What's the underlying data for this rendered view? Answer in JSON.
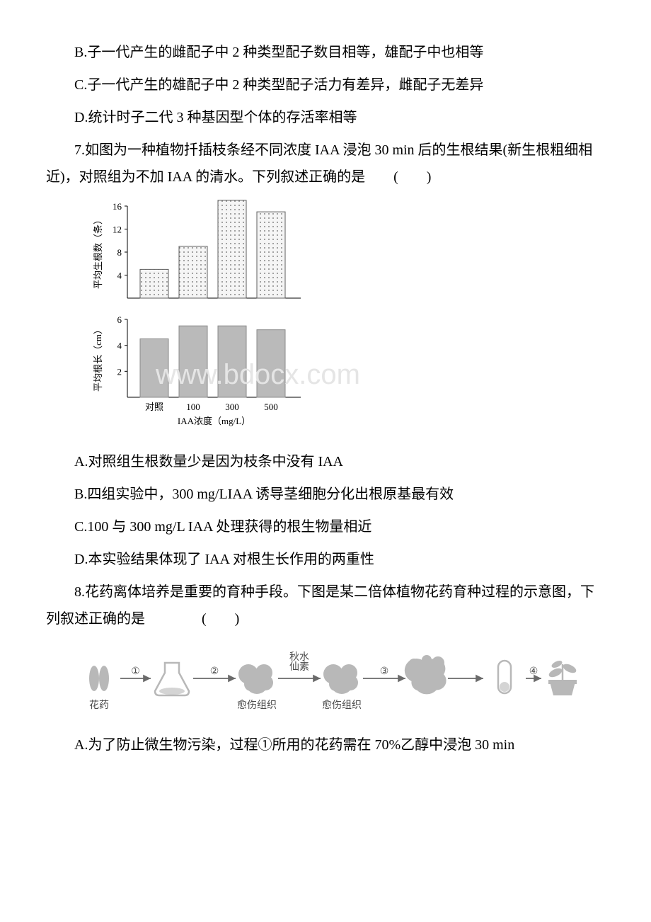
{
  "q6": {
    "optB": "B.子一代产生的雌配子中 2 种类型配子数目相等，雄配子中也相等",
    "optC": "C.子一代产生的雄配子中 2 种类型配子活力有差异，雌配子无差异",
    "optD": "D.统计时子二代 3 种基因型个体的存活率相等"
  },
  "q7": {
    "stem": "7.如图为一种植物扦插枝条经不同浓度 IAA 浸泡 30 min 后的生根结果(新生根粗细相近)，对照组为不加 IAA 的清水。下列叙述正确的是  (  )",
    "optA": "A.对照组生根数量少是因为枝条中没有 IAA",
    "optB": "B.四组实验中，300 mg/LIAA 诱导茎细胞分化出根原基最有效",
    "optC": "C.100 与 300 mg/L IAA 处理获得的根生物量相近",
    "optD": "D.本实验结果体现了 IAA 对根生长作用的两重性",
    "chart_top": {
      "ylabel": "平均生根数（条）",
      "ymax": 16,
      "yticks": [
        4,
        8,
        12,
        16
      ],
      "values": [
        5,
        9,
        17,
        15
      ],
      "categories": [
        "对照",
        "100",
        "300",
        "500"
      ],
      "bar_fill": "#f5f5f5",
      "bar_stroke": "#5c5c5c",
      "dot_pattern": true,
      "axis_color": "#000"
    },
    "chart_bottom": {
      "ylabel": "平均根长（cm）",
      "ymax": 6,
      "yticks": [
        2,
        4,
        6
      ],
      "values": [
        4.5,
        5.5,
        5.5,
        5.2
      ],
      "categories": [
        "对照",
        "100",
        "300",
        "500"
      ],
      "bar_fill": "#bababa",
      "bar_stroke": "#8a8a8a",
      "xlabel": "IAA浓度（mg/L）",
      "axis_color": "#000"
    },
    "watermark_text": "www.bdocx.com",
    "watermark_fontsize": 40,
    "watermark_color": "#e5e5e5"
  },
  "q8": {
    "stem": "8.花药离体培养是重要的育种手段。下图是某二倍体植物花药育种过程的示意图，下列叙述正确的是    (  )",
    "optA": "A.为了防止微生物污染，过程①所用的花药需在 70%乙醇中浸泡 30 min",
    "diagram": {
      "nodes": [
        {
          "label": "花药",
          "x": 35,
          "type": "anther"
        },
        {
          "label": "",
          "x": 138,
          "type": "flask"
        },
        {
          "label": "愈伤组织",
          "x": 258,
          "type": "callus"
        },
        {
          "label": "愈伤组织",
          "x": 378,
          "type": "callus"
        },
        {
          "label": "",
          "x": 498,
          "type": "plant"
        },
        {
          "label": "",
          "x": 608,
          "type": "tube"
        },
        {
          "label": "",
          "x": 690,
          "type": "pot"
        }
      ],
      "arrows": [
        {
          "from": 0,
          "to": 1,
          "label": "①"
        },
        {
          "from": 1,
          "to": 2,
          "label": "②"
        },
        {
          "from": 2,
          "to": 3,
          "label": "",
          "top_label": "秋水\n仙素"
        },
        {
          "from": 3,
          "to": 4,
          "label": "③"
        },
        {
          "from": 4,
          "to": 5,
          "label": ""
        },
        {
          "from": 5,
          "to": 6,
          "label": "④"
        }
      ],
      "shape_fill": "#b8b8b8",
      "shape_stroke": "#b8b8b8",
      "text_color": "#4a4a4a",
      "arrow_color": "#6a6a6a",
      "label_fontsize": 14
    }
  }
}
